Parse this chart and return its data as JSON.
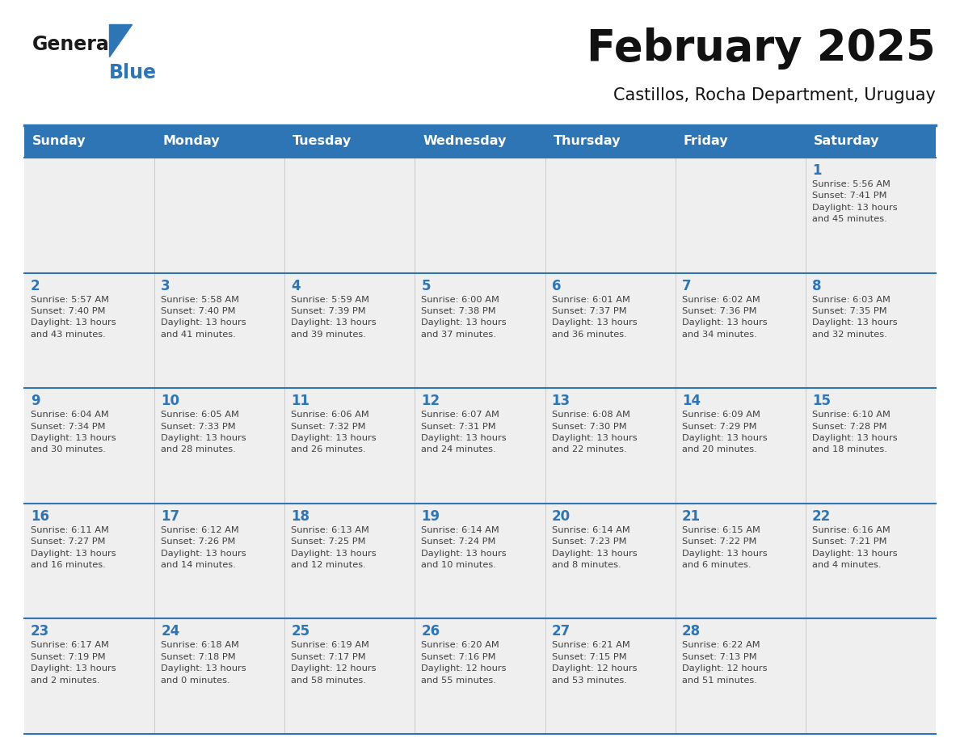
{
  "title": "February 2025",
  "subtitle": "Castillos, Rocha Department, Uruguay",
  "days_of_week": [
    "Sunday",
    "Monday",
    "Tuesday",
    "Wednesday",
    "Thursday",
    "Friday",
    "Saturday"
  ],
  "header_bg": "#2E75B6",
  "header_text": "#FFFFFF",
  "cell_bg": "#EFEFEF",
  "border_color": "#2E75B6",
  "day_num_color": "#2E75B6",
  "text_color": "#404040",
  "logo_general_color": "#1a1a1a",
  "logo_blue_color": "#2E75B6",
  "calendar_data": [
    [
      {
        "day": null,
        "info": ""
      },
      {
        "day": null,
        "info": ""
      },
      {
        "day": null,
        "info": ""
      },
      {
        "day": null,
        "info": ""
      },
      {
        "day": null,
        "info": ""
      },
      {
        "day": null,
        "info": ""
      },
      {
        "day": 1,
        "info": "Sunrise: 5:56 AM\nSunset: 7:41 PM\nDaylight: 13 hours\nand 45 minutes."
      }
    ],
    [
      {
        "day": 2,
        "info": "Sunrise: 5:57 AM\nSunset: 7:40 PM\nDaylight: 13 hours\nand 43 minutes."
      },
      {
        "day": 3,
        "info": "Sunrise: 5:58 AM\nSunset: 7:40 PM\nDaylight: 13 hours\nand 41 minutes."
      },
      {
        "day": 4,
        "info": "Sunrise: 5:59 AM\nSunset: 7:39 PM\nDaylight: 13 hours\nand 39 minutes."
      },
      {
        "day": 5,
        "info": "Sunrise: 6:00 AM\nSunset: 7:38 PM\nDaylight: 13 hours\nand 37 minutes."
      },
      {
        "day": 6,
        "info": "Sunrise: 6:01 AM\nSunset: 7:37 PM\nDaylight: 13 hours\nand 36 minutes."
      },
      {
        "day": 7,
        "info": "Sunrise: 6:02 AM\nSunset: 7:36 PM\nDaylight: 13 hours\nand 34 minutes."
      },
      {
        "day": 8,
        "info": "Sunrise: 6:03 AM\nSunset: 7:35 PM\nDaylight: 13 hours\nand 32 minutes."
      }
    ],
    [
      {
        "day": 9,
        "info": "Sunrise: 6:04 AM\nSunset: 7:34 PM\nDaylight: 13 hours\nand 30 minutes."
      },
      {
        "day": 10,
        "info": "Sunrise: 6:05 AM\nSunset: 7:33 PM\nDaylight: 13 hours\nand 28 minutes."
      },
      {
        "day": 11,
        "info": "Sunrise: 6:06 AM\nSunset: 7:32 PM\nDaylight: 13 hours\nand 26 minutes."
      },
      {
        "day": 12,
        "info": "Sunrise: 6:07 AM\nSunset: 7:31 PM\nDaylight: 13 hours\nand 24 minutes."
      },
      {
        "day": 13,
        "info": "Sunrise: 6:08 AM\nSunset: 7:30 PM\nDaylight: 13 hours\nand 22 minutes."
      },
      {
        "day": 14,
        "info": "Sunrise: 6:09 AM\nSunset: 7:29 PM\nDaylight: 13 hours\nand 20 minutes."
      },
      {
        "day": 15,
        "info": "Sunrise: 6:10 AM\nSunset: 7:28 PM\nDaylight: 13 hours\nand 18 minutes."
      }
    ],
    [
      {
        "day": 16,
        "info": "Sunrise: 6:11 AM\nSunset: 7:27 PM\nDaylight: 13 hours\nand 16 minutes."
      },
      {
        "day": 17,
        "info": "Sunrise: 6:12 AM\nSunset: 7:26 PM\nDaylight: 13 hours\nand 14 minutes."
      },
      {
        "day": 18,
        "info": "Sunrise: 6:13 AM\nSunset: 7:25 PM\nDaylight: 13 hours\nand 12 minutes."
      },
      {
        "day": 19,
        "info": "Sunrise: 6:14 AM\nSunset: 7:24 PM\nDaylight: 13 hours\nand 10 minutes."
      },
      {
        "day": 20,
        "info": "Sunrise: 6:14 AM\nSunset: 7:23 PM\nDaylight: 13 hours\nand 8 minutes."
      },
      {
        "day": 21,
        "info": "Sunrise: 6:15 AM\nSunset: 7:22 PM\nDaylight: 13 hours\nand 6 minutes."
      },
      {
        "day": 22,
        "info": "Sunrise: 6:16 AM\nSunset: 7:21 PM\nDaylight: 13 hours\nand 4 minutes."
      }
    ],
    [
      {
        "day": 23,
        "info": "Sunrise: 6:17 AM\nSunset: 7:19 PM\nDaylight: 13 hours\nand 2 minutes."
      },
      {
        "day": 24,
        "info": "Sunrise: 6:18 AM\nSunset: 7:18 PM\nDaylight: 13 hours\nand 0 minutes."
      },
      {
        "day": 25,
        "info": "Sunrise: 6:19 AM\nSunset: 7:17 PM\nDaylight: 12 hours\nand 58 minutes."
      },
      {
        "day": 26,
        "info": "Sunrise: 6:20 AM\nSunset: 7:16 PM\nDaylight: 12 hours\nand 55 minutes."
      },
      {
        "day": 27,
        "info": "Sunrise: 6:21 AM\nSunset: 7:15 PM\nDaylight: 12 hours\nand 53 minutes."
      },
      {
        "day": 28,
        "info": "Sunrise: 6:22 AM\nSunset: 7:13 PM\nDaylight: 12 hours\nand 51 minutes."
      },
      {
        "day": null,
        "info": ""
      }
    ]
  ]
}
